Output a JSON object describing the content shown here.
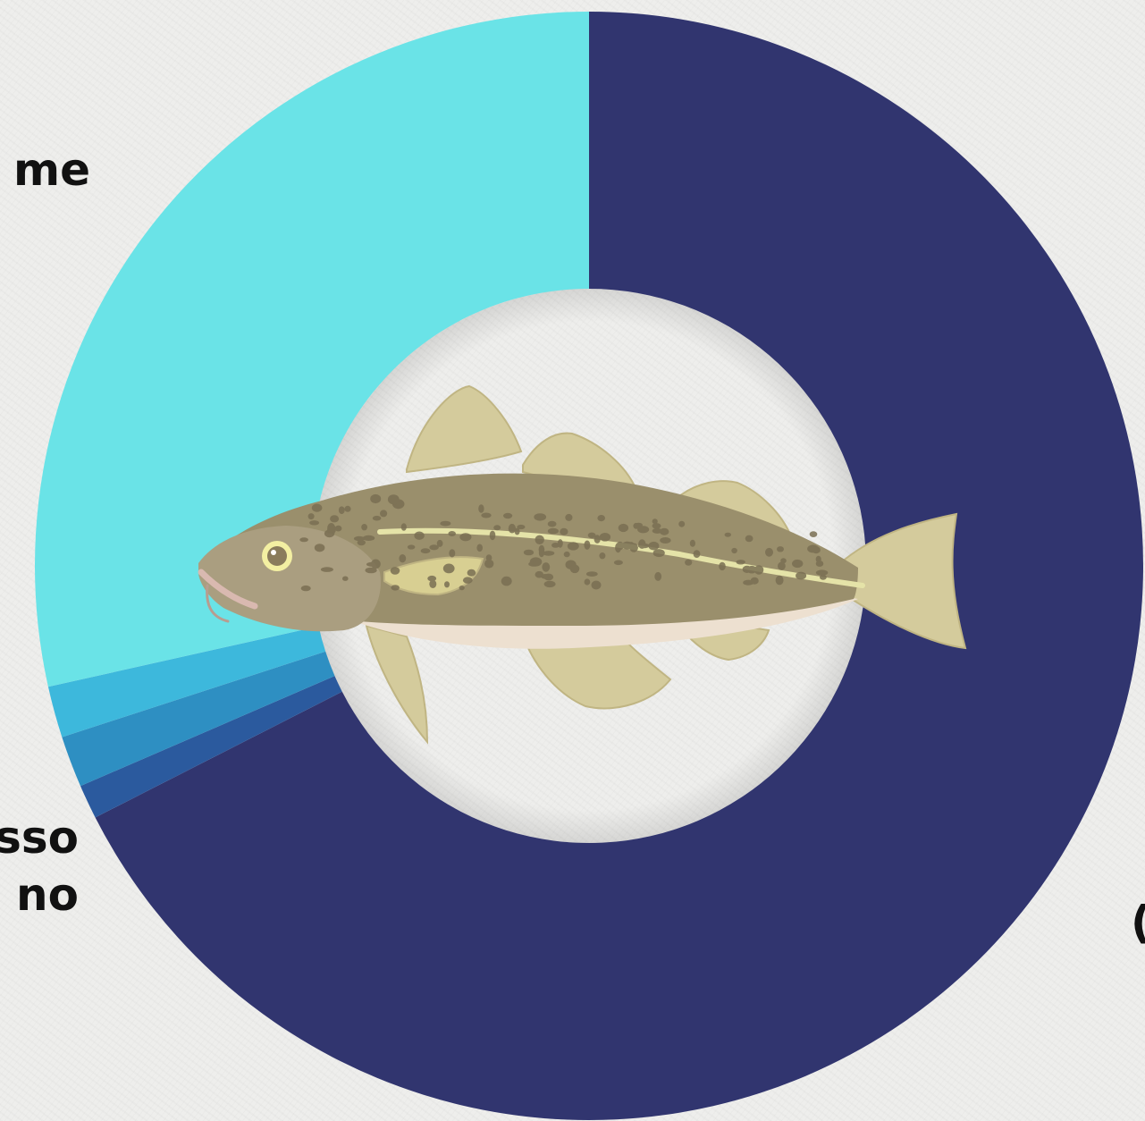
{
  "chart_data": {
    "type": "pie",
    "labels": [
      "",
      "",
      "",
      "",
      ""
    ],
    "values": [
      67.5,
      1.0,
      1.5,
      1.5,
      28.5
    ],
    "colors": [
      "#31356f",
      "#2b5a9e",
      "#2e8fc2",
      "#3db8dc",
      "#6ae3e7"
    ],
    "label_texts": [
      {
        "lines": [
          "me"
        ]
      },
      {
        "lines": [
          "sso",
          "no"
        ]
      },
      {
        "lines": [
          "("
        ]
      }
    ],
    "center_icon": "cod-fish-illustration"
  }
}
